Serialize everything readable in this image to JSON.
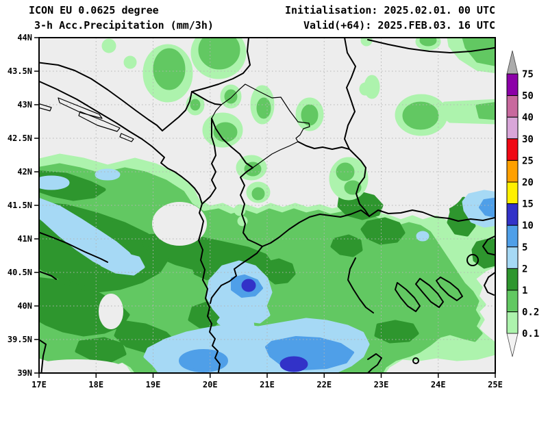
{
  "header": {
    "model": "ICON EU 0.0625 degree",
    "product": "3-h Acc.Precipitation (mm/3h)",
    "init": "Initialisation: 2025.02.01. 00 UTC",
    "valid": "Valid(+64): 2025.FEB.03. 16 UTC"
  },
  "map": {
    "x_ticks": [
      "17E",
      "18E",
      "19E",
      "20E",
      "21E",
      "22E",
      "23E",
      "24E",
      "25E"
    ],
    "y_ticks": [
      "44N",
      "43.5N",
      "43N",
      "42.5N",
      "42N",
      "41.5N",
      "41N",
      "40.5N",
      "40N",
      "39.5N",
      "39N"
    ],
    "lon_range": [
      17,
      25
    ],
    "lat_range": [
      39,
      44
    ]
  },
  "legend": {
    "unit": "mm/3h",
    "boundaries": [
      "75",
      "50",
      "40",
      "30",
      "25",
      "20",
      "15",
      "10",
      "5",
      "2",
      "1",
      "0.2",
      "0.1"
    ],
    "band_colors": [
      "#ABABAB",
      "#8C00A8",
      "#C8699E",
      "#D9A6D9",
      "#F00814",
      "#FFA000",
      "#FFF000",
      "#3232C8",
      "#4F9FE8",
      "#A6D9F5",
      "#2E962E",
      "#62C862",
      "#ADF3AD",
      "#F2F2F2"
    ],
    "over_shape": "triangle-up",
    "under_shape": "triangle-down"
  },
  "palette": {
    "background": "#FFFFFF",
    "map_bg": "#EDEDED",
    "border": "#000000",
    "grid": "#B4B4B4",
    "precip_light_green": "#ADF3AD",
    "precip_green": "#62C862",
    "precip_dark_green": "#2E962E",
    "precip_light_blue": "#A6D9F5",
    "precip_blue": "#4F9FE8",
    "precip_dark_blue": "#3232C8"
  }
}
